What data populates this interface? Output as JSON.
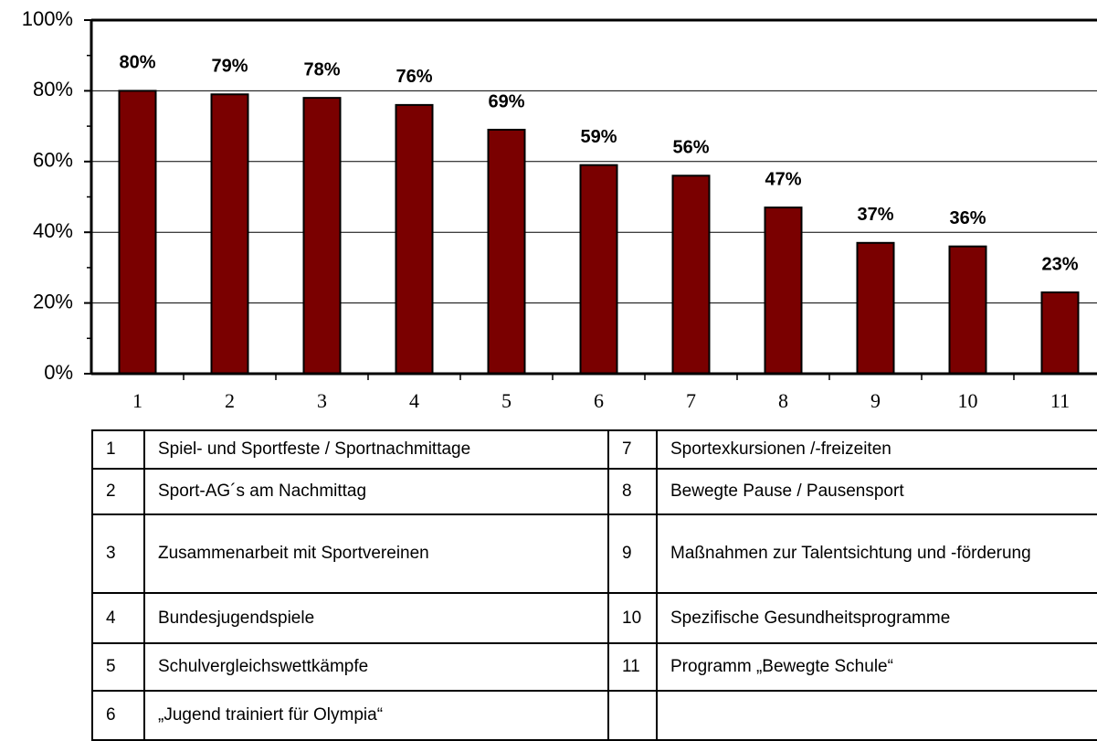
{
  "chart_data": {
    "type": "bar",
    "categories": [
      "1",
      "2",
      "3",
      "4",
      "5",
      "6",
      "7",
      "8",
      "9",
      "10",
      "11"
    ],
    "values": [
      80,
      79,
      78,
      76,
      69,
      59,
      56,
      47,
      37,
      36,
      23
    ],
    "value_labels": [
      "80%",
      "79%",
      "78%",
      "76%",
      "69%",
      "59%",
      "56%",
      "47%",
      "37%",
      "36%",
      "23%"
    ],
    "color": "#7a0000",
    "ylim": [
      0,
      100
    ],
    "yticks": [
      {
        "value": 0,
        "label": "0%"
      },
      {
        "value": 20,
        "label": "20%"
      },
      {
        "value": 40,
        "label": "40%"
      },
      {
        "value": 60,
        "label": "60%"
      },
      {
        "value": 80,
        "label": "80%"
      },
      {
        "value": 100,
        "label": "100%"
      }
    ],
    "yminor": [
      10,
      30,
      50,
      70,
      90
    ],
    "grid": true
  },
  "table": {
    "left": [
      [
        "1",
        "Spiel- und Sportfeste / Sportnachmittage"
      ],
      [
        "2",
        "Sport-AG´s am Nachmittag"
      ],
      [
        "3",
        "Zusammenarbeit mit Sportvereinen"
      ],
      [
        "4",
        "Bundesjugendspiele"
      ],
      [
        "5",
        "Schulvergleichswettkämpfe"
      ],
      [
        "6",
        "„Jugend trainiert für Olympia“"
      ]
    ],
    "right": [
      [
        "7",
        "Sportexkursionen /-freizeiten"
      ],
      [
        "8",
        "Bewegte Pause / Pausensport"
      ],
      [
        "9",
        "Maßnahmen zur Talentsichtung und -förderung"
      ],
      [
        "10",
        "Spezifische Gesundheitsprogramme"
      ],
      [
        "11",
        "Programm „Bewegte Schule“"
      ]
    ]
  }
}
